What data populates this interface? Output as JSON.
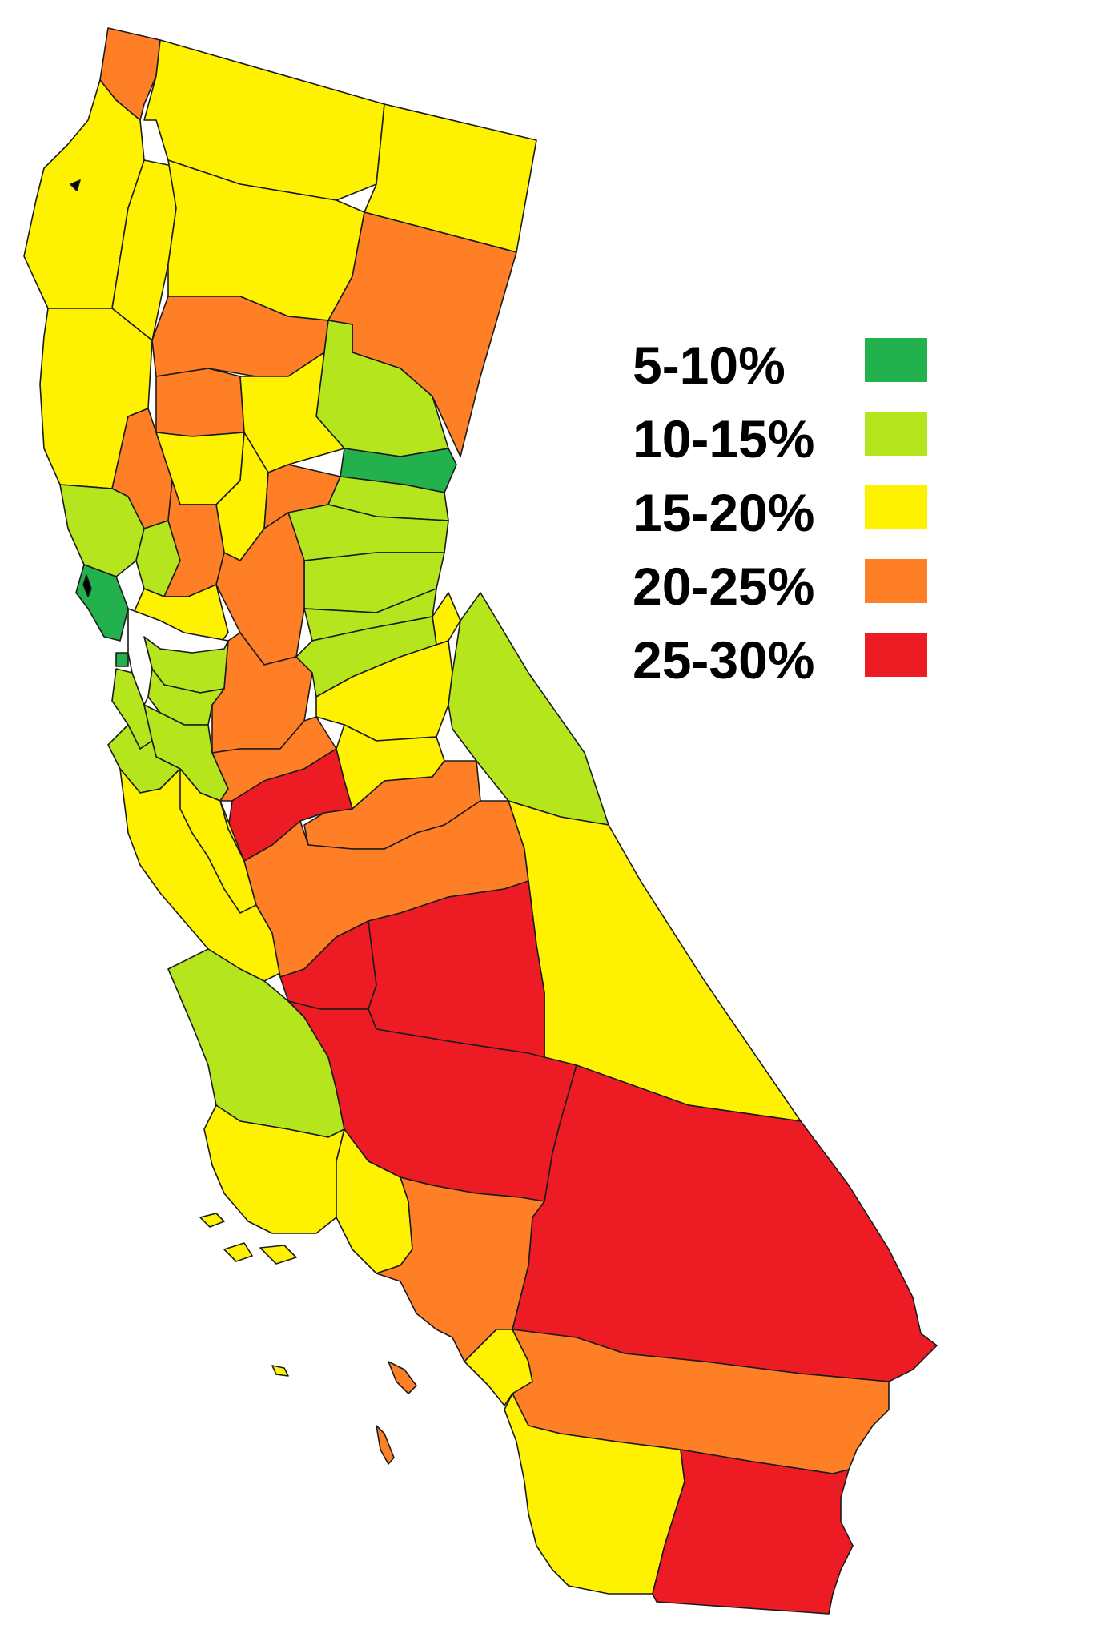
{
  "colors": {
    "bin_5_10": "#22b14c",
    "bin_10_15": "#b5e61d",
    "bin_15_20": "#fff200",
    "bin_20_25": "#ff7f27",
    "bin_25_30": "#ed1c24",
    "border": "#1a1a1a",
    "background": "#ffffff"
  },
  "legend": {
    "items": [
      {
        "label": "5-10%",
        "color_key": "bin_5_10"
      },
      {
        "label": "10-15%",
        "color_key": "bin_10_15"
      },
      {
        "label": "15-20%",
        "color_key": "bin_15_20"
      },
      {
        "label": "20-25%",
        "color_key": "bin_20_25"
      },
      {
        "label": "25-30%",
        "color_key": "bin_25_30"
      }
    ]
  },
  "map": {
    "region": "California counties",
    "county_bins": {
      "del-norte": "bin_20_25",
      "siskiyou": "bin_15_20",
      "modoc": "bin_15_20",
      "humboldt": "bin_15_20",
      "trinity": "bin_15_20",
      "shasta": "bin_15_20",
      "lassen": "bin_20_25",
      "mendocino": "bin_15_20",
      "tehama": "bin_20_25",
      "plumas": "bin_10_15",
      "glenn": "bin_20_25",
      "butte": "bin_15_20",
      "sierra": "bin_5_10",
      "lake": "bin_20_25",
      "colusa": "bin_15_20",
      "sutter": "bin_15_20",
      "yuba": "bin_20_25",
      "nevada": "bin_10_15",
      "placer": "bin_10_15",
      "el-dorado": "bin_10_15",
      "sonoma": "bin_10_15",
      "napa": "bin_10_15",
      "yolo": "bin_20_25",
      "sacramento": "bin_20_25",
      "marin": "bin_5_10",
      "san-francisco": "bin_5_10",
      "solano": "bin_15_20",
      "contra-costa": "bin_10_15",
      "san-joaquin": "bin_20_25",
      "amador": "bin_10_15",
      "alpine": "bin_15_20",
      "calaveras": "bin_10_15",
      "tuolumne": "bin_15_20",
      "mono": "bin_10_15",
      "san-mateo": "bin_10_15",
      "alameda": "bin_10_15",
      "santa-clara": "bin_10_15",
      "santa-cruz": "bin_10_15",
      "stanislaus": "bin_20_25",
      "merced": "bin_25_30",
      "mariposa": "bin_15_20",
      "madera": "bin_20_25",
      "monterey": "bin_15_20",
      "san-benito": "bin_15_20",
      "fresno": "bin_20_25",
      "inyo": "bin_15_20",
      "kings": "bin_25_30",
      "tulare": "bin_25_30",
      "san-luis-obispo": "bin_10_15",
      "kern": "bin_25_30",
      "san-bernardino": "bin_25_30",
      "santa-barbara": "bin_15_20",
      "ventura": "bin_15_20",
      "los-angeles": "bin_20_25",
      "orange": "bin_15_20",
      "riverside": "bin_20_25",
      "san-diego": "bin_15_20",
      "imperial": "bin_25_30",
      "channel-islands-north": "bin_15_20",
      "catalina-island": "bin_20_25",
      "san-clemente-island": "bin_20_25",
      "san-nicolas-island": "bin_15_20"
    }
  }
}
